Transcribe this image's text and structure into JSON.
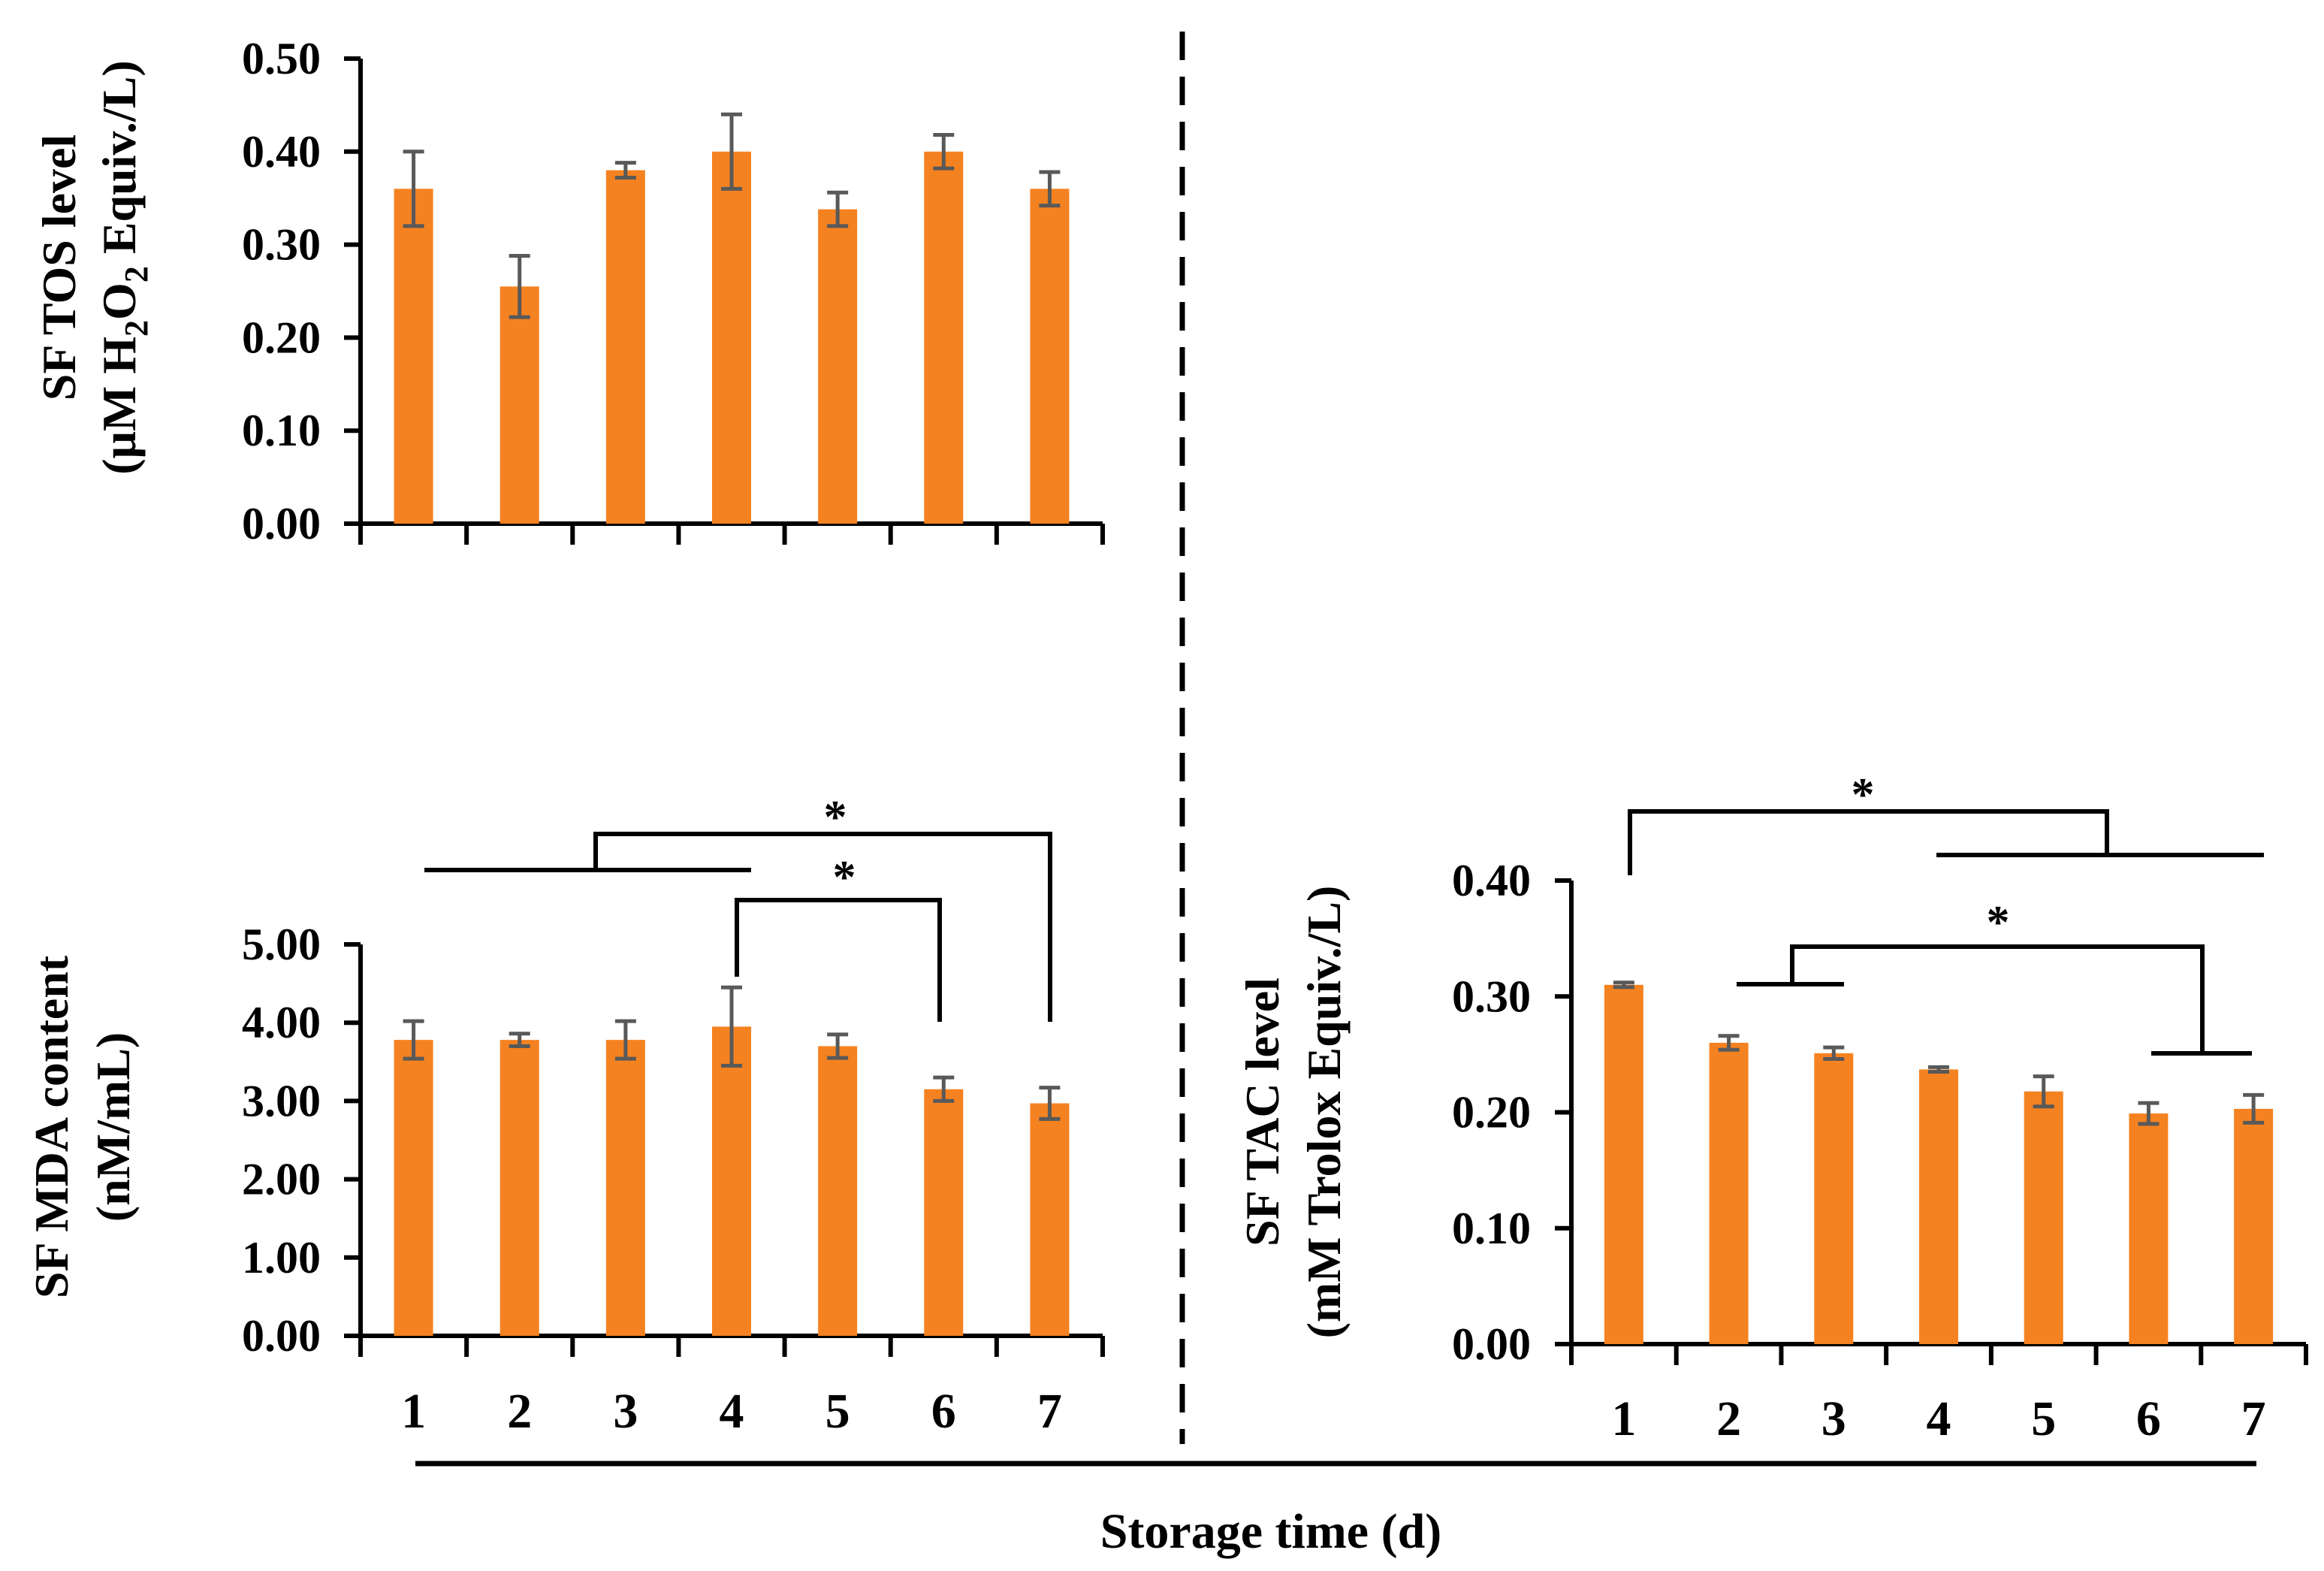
{
  "chart_data": [
    {
      "id": "tos",
      "type": "bar",
      "categories": [
        "1",
        "2",
        "3",
        "4",
        "5",
        "6",
        "7"
      ],
      "values": [
        0.36,
        0.255,
        0.38,
        0.4,
        0.338,
        0.4,
        0.36
      ],
      "errors": [
        0.04,
        0.033,
        0.008,
        0.04,
        0.018,
        0.018,
        0.018
      ],
      "ylim": [
        0,
        0.5
      ],
      "yticks": [
        "0.00",
        "0.10",
        "0.20",
        "0.30",
        "0.40",
        "0.50"
      ],
      "ylabel_line1": "SF TOS level",
      "ylabel_line2_pre": "(μM H",
      "ylabel_sub1": "2",
      "ylabel_mid": "O",
      "ylabel_sub2": "2",
      "ylabel_post": " Equiv./L)",
      "bar_color": "#F58220",
      "error_color": "#595959",
      "show_xticks": false,
      "significance": []
    },
    {
      "id": "mda",
      "type": "bar",
      "categories": [
        "1",
        "2",
        "3",
        "4",
        "5",
        "6",
        "7"
      ],
      "values": [
        3.78,
        3.78,
        3.78,
        3.95,
        3.7,
        3.15,
        2.97
      ],
      "errors": [
        0.24,
        0.08,
        0.24,
        0.5,
        0.15,
        0.15,
        0.2
      ],
      "ylim": [
        0,
        5
      ],
      "yticks": [
        "0.00",
        "1.00",
        "2.00",
        "3.00",
        "4.00",
        "5.00"
      ],
      "ylabel_line1": "SF MDA content",
      "ylabel_line2": "(nM/mL)",
      "bar_color": "#F58220",
      "error_color": "#595959",
      "show_xticks": true,
      "significance": [
        {
          "label": "*",
          "from": "1-4",
          "to": "7"
        },
        {
          "label": "*",
          "from": "4",
          "to": "6"
        }
      ]
    },
    {
      "id": "tac",
      "type": "bar",
      "categories": [
        "1",
        "2",
        "3",
        "4",
        "5",
        "6",
        "7"
      ],
      "values": [
        0.31,
        0.26,
        0.251,
        0.237,
        0.218,
        0.199,
        0.203
      ],
      "errors": [
        0.002,
        0.006,
        0.005,
        0.002,
        0.013,
        0.009,
        0.012
      ],
      "ylim": [
        0,
        0.4
      ],
      "yticks": [
        "0.00",
        "0.10",
        "0.20",
        "0.30",
        "0.40"
      ],
      "ylabel_line1": "SF TAC level",
      "ylabel_line2": "(mM Trolox Equiv./L)",
      "bar_color": "#F58220",
      "error_color": "#595959",
      "show_xticks": true,
      "significance": [
        {
          "label": "*",
          "from": "1",
          "to": "4-7"
        },
        {
          "label": "*",
          "from": "2-3",
          "to": "6-7"
        }
      ]
    }
  ],
  "xlabel": "Storage time (d)"
}
